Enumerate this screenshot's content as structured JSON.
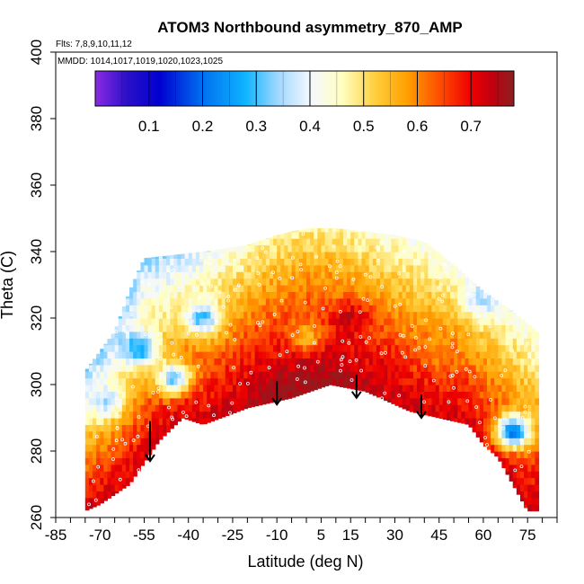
{
  "chart_data": {
    "type": "heatmap",
    "title": "ATOM3 Northbound asymmetry_870_AMP",
    "flights_label": "Flts: 7,8,9,10,11,12",
    "dates_label": "MMDD: 1014,1017,1019,1020,1023,1025",
    "xlabel": "Latitude (deg N)",
    "ylabel": "Theta (C)",
    "xlim": [
      -85,
      85
    ],
    "ylim": [
      260,
      400
    ],
    "x_ticks": [
      -85,
      -70,
      -55,
      -40,
      -25,
      -10,
      5,
      15,
      30,
      45,
      60,
      75
    ],
    "x_minor_step": 5,
    "y_ticks": [
      260,
      280,
      300,
      320,
      340,
      360,
      380,
      400
    ],
    "colorbar": {
      "range": [
        0.0,
        0.78
      ],
      "ticks": [
        0.1,
        0.2,
        0.3,
        0.4,
        0.5,
        0.6,
        0.7
      ],
      "stops": [
        {
          "v": 0.0,
          "color": "#8a2be2"
        },
        {
          "v": 0.06,
          "color": "#2a10c8"
        },
        {
          "v": 0.12,
          "color": "#0000d0"
        },
        {
          "v": 0.2,
          "color": "#0070f0"
        },
        {
          "v": 0.28,
          "color": "#10b4ff"
        },
        {
          "v": 0.34,
          "color": "#a0d8ff"
        },
        {
          "v": 0.4,
          "color": "#f4f8ff"
        },
        {
          "v": 0.46,
          "color": "#ffffc0"
        },
        {
          "v": 0.52,
          "color": "#ffd040"
        },
        {
          "v": 0.58,
          "color": "#ffa000"
        },
        {
          "v": 0.64,
          "color": "#ff5000"
        },
        {
          "v": 0.7,
          "color": "#ee0000"
        },
        {
          "v": 0.74,
          "color": "#c00010"
        },
        {
          "v": 0.78,
          "color": "#8a2020"
        }
      ]
    },
    "field_mask": {
      "top_boundary": [
        [
          -75,
          304
        ],
        [
          -70,
          310
        ],
        [
          -65,
          316
        ],
        [
          -60,
          328
        ],
        [
          -55,
          338
        ],
        [
          -45,
          339
        ],
        [
          -35,
          340
        ],
        [
          -20,
          342
        ],
        [
          -10,
          345
        ],
        [
          0,
          347
        ],
        [
          10,
          347
        ],
        [
          20,
          346
        ],
        [
          30,
          345
        ],
        [
          40,
          343
        ],
        [
          50,
          336
        ],
        [
          60,
          328
        ],
        [
          70,
          322
        ],
        [
          78,
          316
        ]
      ],
      "bottom_boundary": [
        [
          -75,
          262
        ],
        [
          -70,
          264
        ],
        [
          -60,
          270
        ],
        [
          -50,
          283
        ],
        [
          -42,
          290
        ],
        [
          -35,
          288
        ],
        [
          -20,
          293
        ],
        [
          -5,
          296
        ],
        [
          8,
          300
        ],
        [
          20,
          298
        ],
        [
          35,
          292
        ],
        [
          45,
          290
        ],
        [
          55,
          288
        ],
        [
          60,
          282
        ],
        [
          65,
          278
        ],
        [
          70,
          270
        ],
        [
          75,
          262
        ],
        [
          78,
          262
        ]
      ]
    },
    "arrows": [
      {
        "lat": -53,
        "theta_from": 289,
        "theta_to": 277
      },
      {
        "lat": -10,
        "theta_from": 301,
        "theta_to": 294
      },
      {
        "lat": 17,
        "theta_from": 303,
        "theta_to": 296
      },
      {
        "lat": 39,
        "theta_from": 297,
        "theta_to": 290
      }
    ],
    "hotspots": [
      {
        "lat": -57,
        "theta": 311,
        "value": 0.26
      },
      {
        "lat": -35,
        "theta": 320,
        "value": 0.3
      },
      {
        "lat": -45,
        "theta": 302,
        "value": 0.32
      },
      {
        "lat": -68,
        "theta": 295,
        "value": 0.36
      },
      {
        "lat": 70,
        "theta": 286,
        "value": 0.2
      },
      {
        "lat": 60,
        "theta": 326,
        "value": 0.36
      },
      {
        "lat": 0,
        "theta": 315,
        "value": 0.55
      },
      {
        "lat": 15,
        "theta": 320,
        "value": 0.73
      },
      {
        "lat": 25,
        "theta": 305,
        "value": 0.7
      },
      {
        "lat": 45,
        "theta": 310,
        "value": 0.6
      }
    ]
  }
}
